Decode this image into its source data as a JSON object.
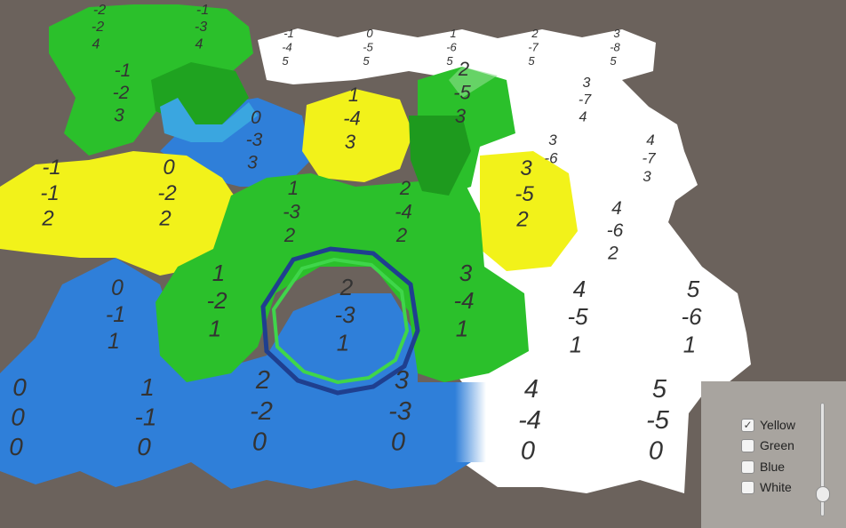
{
  "legend": {
    "options": [
      {
        "label": "Yellow",
        "checked": true
      },
      {
        "label": "Green",
        "checked": false
      },
      {
        "label": "Blue",
        "checked": false
      },
      {
        "label": "White",
        "checked": false
      }
    ],
    "check_glyph": "✓",
    "slider_value": 0.15
  },
  "colors": {
    "background": "#6b625c",
    "blue": "#2f7fd9",
    "green": "#2bc02b",
    "yellow": "#f2f21a",
    "white": "#ffffff"
  },
  "cells": [
    {
      "lines": [
        "-2",
        "-2",
        "4"
      ],
      "color": "green"
    },
    {
      "lines": [
        "-1",
        "-3",
        "4"
      ],
      "color": "green"
    },
    {
      "lines": [
        "-1",
        "-4",
        "5"
      ],
      "color": "white"
    },
    {
      "lines": [
        "0",
        "-5",
        "5"
      ],
      "color": "white"
    },
    {
      "lines": [
        "1",
        "-6",
        "5"
      ],
      "color": "white"
    },
    {
      "lines": [
        "2",
        "-7",
        "5"
      ],
      "color": "white"
    },
    {
      "lines": [
        "3",
        "-8",
        "5"
      ],
      "color": "white"
    },
    {
      "lines": [
        "-1",
        "-2",
        "3"
      ],
      "color": "green"
    },
    {
      "lines": [
        "0",
        "-3",
        "3"
      ],
      "color": "blue"
    },
    {
      "lines": [
        "1",
        "-4",
        "3"
      ],
      "color": "yellow"
    },
    {
      "lines": [
        "2",
        "-5",
        "3"
      ],
      "color": "green"
    },
    {
      "lines": [
        "3",
        "-7",
        "4"
      ],
      "color": "white"
    },
    {
      "lines": [
        "3",
        "-6"
      ],
      "color": "white"
    },
    {
      "lines": [
        "4",
        "-7",
        "3"
      ],
      "color": "white"
    },
    {
      "lines": [
        "-1",
        "-1",
        "2"
      ],
      "color": "yellow"
    },
    {
      "lines": [
        "0",
        "-2",
        "2"
      ],
      "color": "yellow"
    },
    {
      "lines": [
        "1",
        "-3",
        "2"
      ],
      "color": "green"
    },
    {
      "lines": [
        "2",
        "-4",
        "2"
      ],
      "color": "green"
    },
    {
      "lines": [
        "3",
        "-5",
        "2"
      ],
      "color": "yellow"
    },
    {
      "lines": [
        "4",
        "-6",
        "2"
      ],
      "color": "white"
    },
    {
      "lines": [
        "0",
        "-1",
        "1"
      ],
      "color": "blue"
    },
    {
      "lines": [
        "1",
        "-2",
        "1"
      ],
      "color": "green"
    },
    {
      "lines": [
        "2",
        "-3",
        "1"
      ],
      "color": "blue"
    },
    {
      "lines": [
        "3",
        "-4",
        "1"
      ],
      "color": "green"
    },
    {
      "lines": [
        "4",
        "-5",
        "1"
      ],
      "color": "white"
    },
    {
      "lines": [
        "5",
        "-6",
        "1"
      ],
      "color": "white"
    },
    {
      "lines": [
        "0",
        "0",
        "0"
      ],
      "color": "blue"
    },
    {
      "lines": [
        "1",
        "-1",
        "0"
      ],
      "color": "blue"
    },
    {
      "lines": [
        "2",
        "-2",
        "0"
      ],
      "color": "blue"
    },
    {
      "lines": [
        "3",
        "-3",
        "0"
      ],
      "color": "blue"
    },
    {
      "lines": [
        "4",
        "-4",
        "0"
      ],
      "color": "white"
    },
    {
      "lines": [
        "5",
        "-5",
        "0"
      ],
      "color": "white"
    }
  ]
}
